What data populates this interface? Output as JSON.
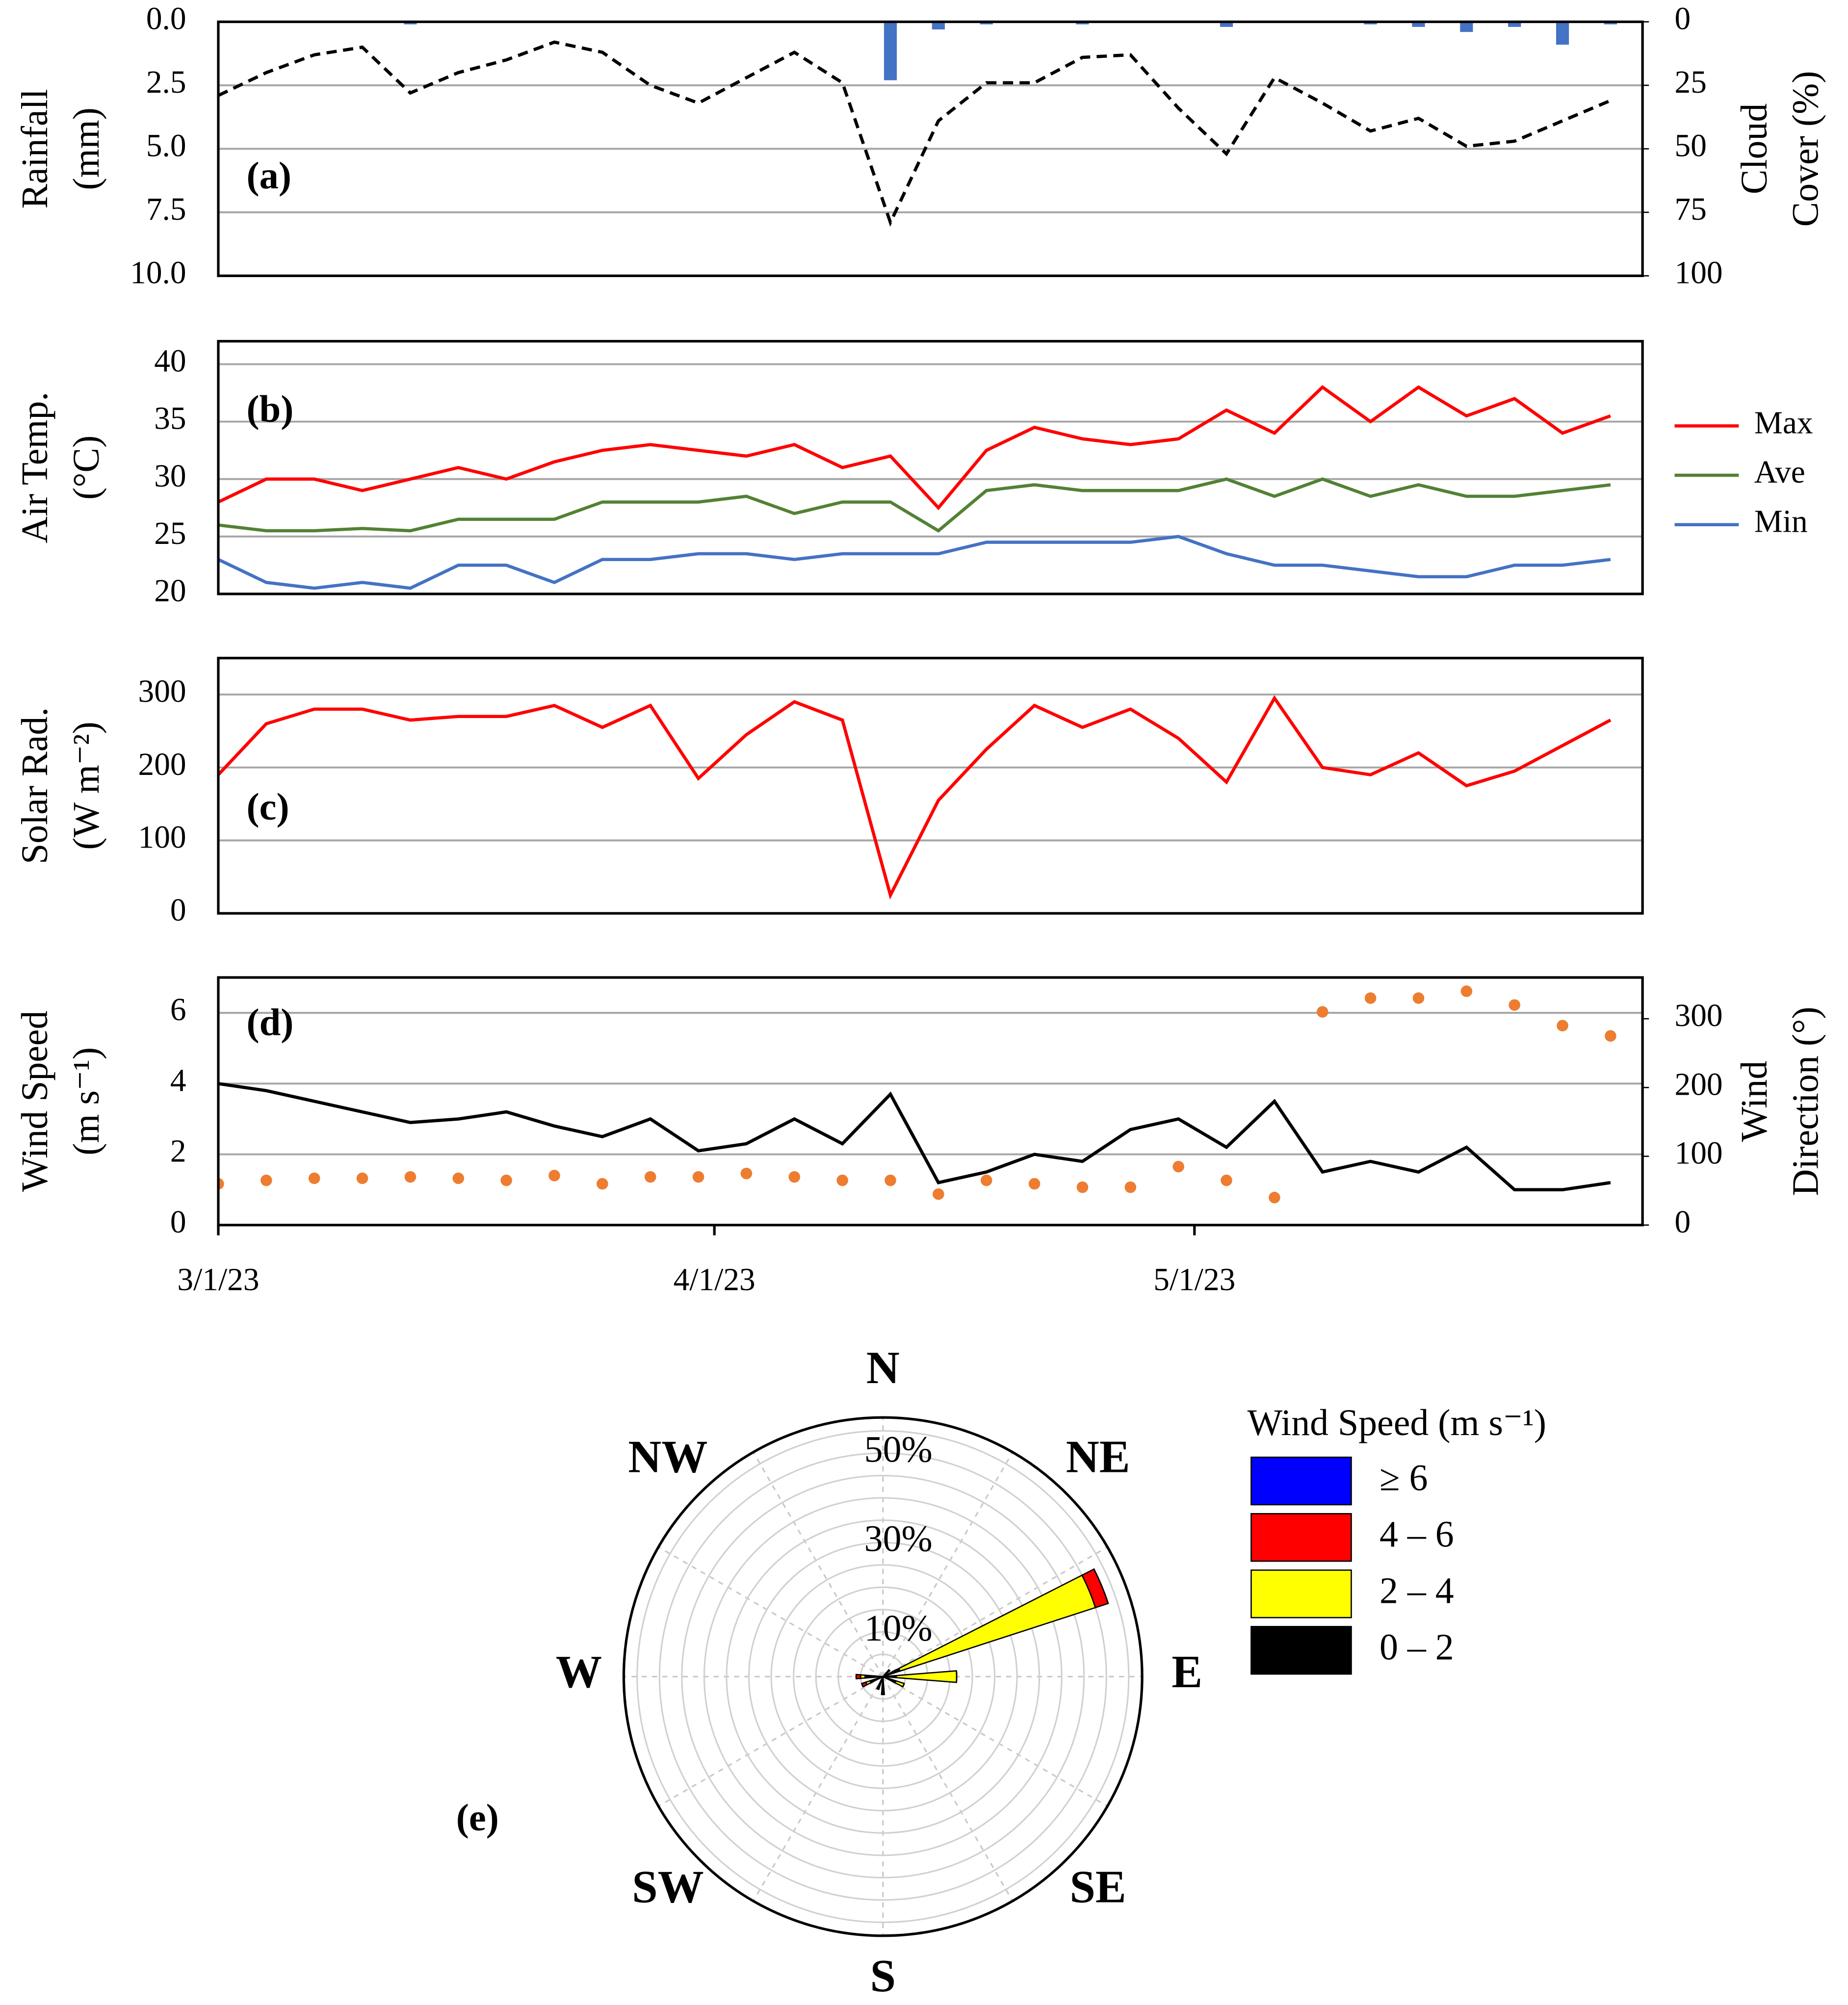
{
  "chart_data": [
    {
      "type": "combo",
      "label": "(a)",
      "ylabel": [
        "Rainfall",
        "(mm)"
      ],
      "ylabel_color": "#4472c4",
      "y2label": [
        "Cloud",
        "Cover (%)"
      ],
      "y2label_color": "#000000",
      "x": [
        0,
        3,
        6,
        9,
        12,
        15,
        18,
        21,
        24,
        27,
        30,
        33,
        36,
        39,
        42,
        45,
        48,
        51,
        54,
        57,
        60,
        63,
        66,
        69,
        72,
        75,
        78,
        81,
        84,
        87
      ],
      "xlim": [
        0,
        89
      ],
      "ylim": [
        0,
        10
      ],
      "y_inverted": true,
      "yticks": [
        {
          "value": 0,
          "label": "0.0"
        },
        2.5,
        {
          "value": 5,
          "label": "5.0"
        },
        7.5,
        {
          "value": 10,
          "label": "10.0"
        }
      ],
      "y2lim": [
        0,
        100
      ],
      "y2_inverted": true,
      "y2ticks": [
        0,
        25,
        50,
        75,
        100
      ],
      "grid": true,
      "series": [
        {
          "kind": "bar",
          "color": "#4472c4",
          "values": [
            0,
            0,
            0,
            0,
            0.1,
            0,
            0,
            0,
            0,
            0,
            0,
            0,
            0,
            0,
            2.3,
            0.3,
            0.1,
            0,
            0.1,
            0,
            0,
            0.2,
            0,
            0,
            0.1,
            0.2,
            0.4,
            0.2,
            0.9,
            0.1
          ]
        },
        {
          "kind": "line",
          "axis": "y2",
          "dash": true,
          "color": "#000000",
          "values": [
            29,
            20,
            13,
            10,
            28,
            20,
            15,
            8,
            12,
            25,
            32,
            22,
            12,
            24,
            79,
            39,
            24,
            24,
            14,
            13,
            34,
            52,
            22,
            32,
            43,
            38,
            49,
            47,
            39,
            31
          ]
        }
      ]
    },
    {
      "type": "line",
      "label": "(b)",
      "ylabel": [
        "Air Temp.",
        "(°C)"
      ],
      "x": [
        0,
        3,
        6,
        9,
        12,
        15,
        18,
        21,
        24,
        27,
        30,
        33,
        36,
        39,
        42,
        45,
        48,
        51,
        54,
        57,
        60,
        63,
        66,
        69,
        72,
        75,
        78,
        81,
        84,
        87
      ],
      "xlim": [
        0,
        89
      ],
      "ylim": [
        20,
        42
      ],
      "yticks": [
        20,
        25,
        30,
        35,
        40
      ],
      "grid": true,
      "legend": "right",
      "series": [
        {
          "name": "Max",
          "kind": "line",
          "color": "#ff0000",
          "values": [
            28,
            30,
            30,
            29,
            30,
            31,
            30,
            31.5,
            32.5,
            33,
            32.5,
            32,
            33,
            31,
            32,
            27.5,
            32.5,
            34.5,
            33.5,
            33,
            33.5,
            36,
            34,
            38,
            35,
            38,
            35.5,
            37,
            34,
            35.5
          ]
        },
        {
          "name": "Ave",
          "kind": "line",
          "color": "#538135",
          "values": [
            26,
            25.5,
            25.5,
            25.7,
            25.5,
            26.5,
            26.5,
            26.5,
            28,
            28,
            28,
            28.5,
            27,
            28,
            28,
            25.5,
            29,
            29.5,
            29,
            29,
            29,
            30,
            28.5,
            30,
            28.5,
            29.5,
            28.5,
            28.5,
            29,
            29.5
          ]
        },
        {
          "name": "Min",
          "kind": "line",
          "color": "#4472c4",
          "values": [
            23,
            21,
            20.5,
            21,
            20.5,
            22.5,
            22.5,
            21,
            23,
            23,
            23.5,
            23.5,
            23,
            23.5,
            23.5,
            23.5,
            24.5,
            24.5,
            24.5,
            24.5,
            25,
            23.5,
            22.5,
            22.5,
            22,
            21.5,
            21.5,
            22.5,
            22.5,
            23
          ]
        }
      ]
    },
    {
      "type": "line",
      "label": "(c)",
      "ylabel": [
        "Solar Rad.",
        "(W m⁻²)"
      ],
      "x": [
        0,
        3,
        6,
        9,
        12,
        15,
        18,
        21,
        24,
        27,
        30,
        33,
        36,
        39,
        42,
        45,
        48,
        51,
        54,
        57,
        60,
        63,
        66,
        69,
        72,
        75,
        78,
        81,
        84,
        87
      ],
      "xlim": [
        0,
        89
      ],
      "ylim": [
        0,
        350
      ],
      "yticks": [
        0,
        100,
        200,
        300
      ],
      "grid": true,
      "series": [
        {
          "kind": "line",
          "color": "#ff0000",
          "values": [
            190,
            260,
            280,
            280,
            265,
            270,
            270,
            285,
            255,
            285,
            185,
            245,
            290,
            265,
            25,
            155,
            225,
            285,
            255,
            280,
            240,
            180,
            295,
            200,
            190,
            220,
            175,
            195,
            230,
            265
          ]
        }
      ]
    },
    {
      "type": "combo",
      "label": "(d)",
      "ylabel": [
        "Wind Speed",
        "(m s⁻¹)"
      ],
      "ylabel_color": "#000000",
      "y2label": [
        "Wind",
        "Direction (°)"
      ],
      "y2label_color": "#ed7d31",
      "x": [
        0,
        3,
        6,
        9,
        12,
        15,
        18,
        21,
        24,
        27,
        30,
        33,
        36,
        39,
        42,
        45,
        48,
        51,
        54,
        57,
        60,
        63,
        66,
        69,
        72,
        75,
        78,
        81,
        84,
        87
      ],
      "xlim": [
        0,
        89
      ],
      "ylim": [
        0,
        7
      ],
      "yticks": [
        0,
        2,
        4,
        6
      ],
      "y2lim": [
        0,
        360
      ],
      "y2ticks": [
        0,
        100,
        200,
        300
      ],
      "grid": true,
      "xticks": [
        {
          "value": 0,
          "label": "3/1/23"
        },
        {
          "value": 31,
          "label": "4/1/23"
        },
        {
          "value": 61,
          "label": "5/1/23"
        }
      ],
      "series": [
        {
          "kind": "line",
          "color": "#000000",
          "values": [
            4,
            3.8,
            3.5,
            3.2,
            2.9,
            3,
            3.2,
            2.8,
            2.5,
            3,
            2.1,
            2.3,
            3,
            2.3,
            3.7,
            1.2,
            1.5,
            2,
            1.8,
            2.7,
            3,
            2.2,
            3.5,
            1.5,
            1.8,
            1.5,
            2.2,
            1,
            1,
            1.2
          ]
        },
        {
          "kind": "scatter",
          "axis": "y2",
          "color": "#ed7d31",
          "values": [
            60,
            65,
            68,
            68,
            70,
            68,
            65,
            72,
            60,
            70,
            70,
            75,
            70,
            65,
            65,
            45,
            65,
            60,
            55,
            55,
            85,
            65,
            40,
            310,
            330,
            330,
            340,
            320,
            290,
            275
          ]
        }
      ]
    },
    {
      "type": "windrose",
      "label": "(e)",
      "legend_title": "Wind Speed (m s⁻¹)",
      "directions": [
        45,
        67.5,
        90,
        112.5,
        180,
        202.5,
        247.5,
        270
      ],
      "rlim": [
        0,
        58
      ],
      "rticks": [
        {
          "value": 10,
          "label": "10%"
        },
        {
          "value": 30,
          "label": "30%"
        },
        {
          "value": 50,
          "label": "50%"
        }
      ],
      "rgrid": [
        5,
        10,
        15,
        20,
        25,
        30,
        35,
        40,
        45,
        50,
        55
      ],
      "compass": [
        {
          "label": "N",
          "angle": 0
        },
        {
          "label": "NE",
          "angle": 45
        },
        {
          "label": "E",
          "angle": 90
        },
        {
          "label": "SE",
          "angle": 135
        },
        {
          "label": "S",
          "angle": 180
        },
        {
          "label": "SW",
          "angle": 225
        },
        {
          "label": "W",
          "angle": 270
        },
        {
          "label": "NW",
          "angle": 315
        }
      ],
      "series": [
        {
          "name": "0 – 2",
          "color": "#000000",
          "values": [
            2,
            4,
            3,
            3,
            4,
            3,
            3,
            4
          ]
        },
        {
          "name": "2 – 4",
          "color": "#ffff00",
          "values": [
            0,
            46,
            13.5,
            2,
            0,
            0,
            1,
            1
          ]
        },
        {
          "name": "4 – 6",
          "color": "#ff0000",
          "values": [
            0,
            3,
            0,
            0,
            0,
            0,
            1,
            1
          ]
        },
        {
          "name": "≥ 6",
          "color": "#0000ff",
          "values": [
            0,
            0,
            0,
            0,
            0,
            0,
            0,
            0
          ]
        }
      ]
    }
  ]
}
